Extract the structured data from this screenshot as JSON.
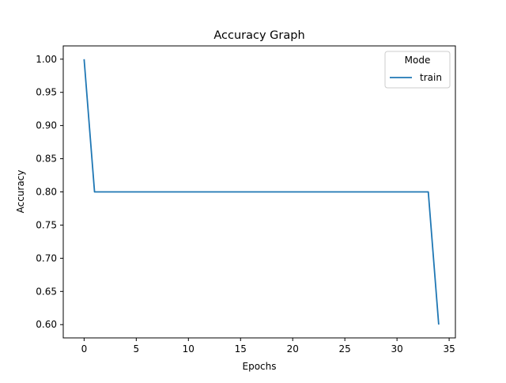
{
  "chart_data": {
    "type": "line",
    "title": "Accuracy Graph",
    "xlabel": "Epochs",
    "ylabel": "Accuracy",
    "xlim": [
      -2,
      35.6
    ],
    "ylim": [
      0.58,
      1.02
    ],
    "xticks": [
      0,
      5,
      10,
      15,
      20,
      25,
      30,
      35
    ],
    "yticks": [
      0.6,
      0.65,
      0.7,
      0.75,
      0.8,
      0.85,
      0.9,
      0.95,
      1.0
    ],
    "grid": false,
    "legend": {
      "title": "Mode",
      "placement": "top-right"
    },
    "series": [
      {
        "name": "train",
        "color": "#1f77b4",
        "x": [
          0,
          1,
          2,
          3,
          4,
          5,
          6,
          7,
          8,
          9,
          10,
          11,
          12,
          13,
          14,
          15,
          16,
          17,
          18,
          19,
          20,
          21,
          22,
          23,
          24,
          25,
          26,
          27,
          28,
          29,
          30,
          31,
          32,
          33,
          34
        ],
        "y": [
          1.0,
          0.8,
          0.8,
          0.8,
          0.8,
          0.8,
          0.8,
          0.8,
          0.8,
          0.8,
          0.8,
          0.8,
          0.8,
          0.8,
          0.8,
          0.8,
          0.8,
          0.8,
          0.8,
          0.8,
          0.8,
          0.8,
          0.8,
          0.8,
          0.8,
          0.8,
          0.8,
          0.8,
          0.8,
          0.8,
          0.8,
          0.8,
          0.8,
          0.8,
          0.6
        ]
      }
    ]
  }
}
